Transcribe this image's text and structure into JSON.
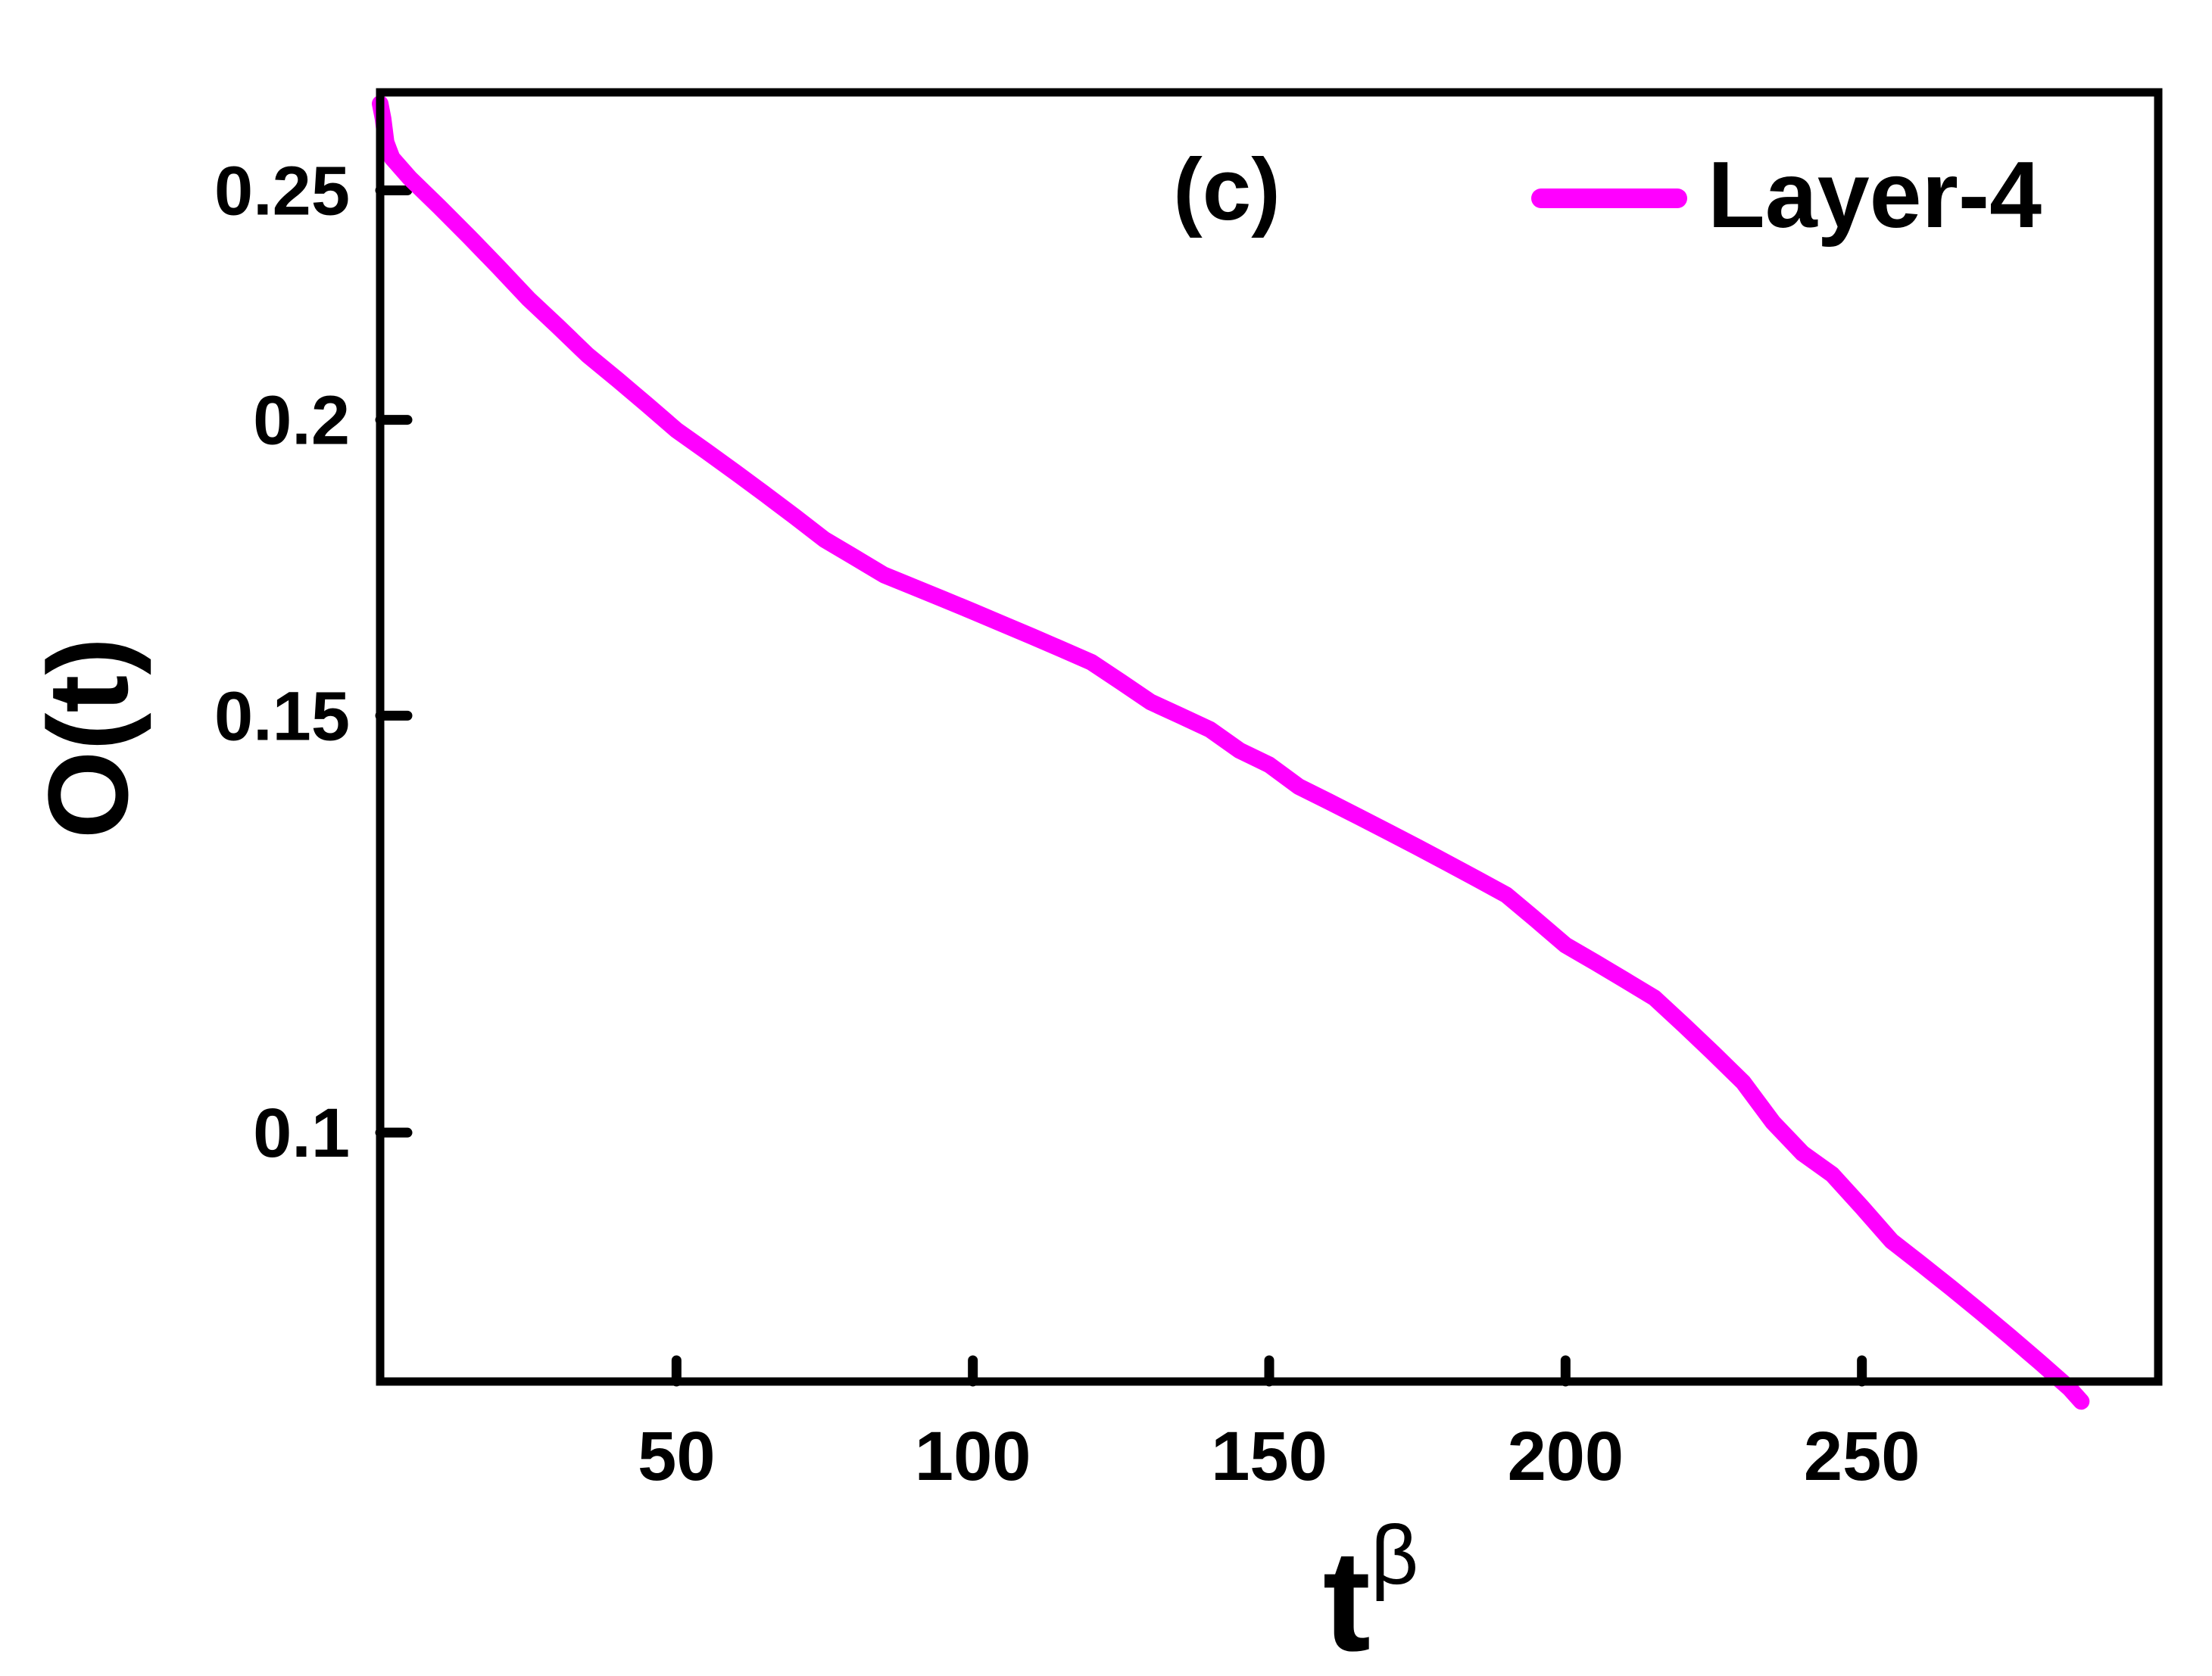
{
  "chart_data": {
    "type": "line",
    "title": "",
    "annotation": "(c)",
    "xlabel": "t",
    "xlabel_superscript": "β",
    "ylabel": "O(t)",
    "xscale": "linear",
    "yscale": "log",
    "xlim": [
      0,
      300
    ],
    "ylim": [
      0.0785,
      0.275
    ],
    "x_ticks": [
      50,
      100,
      150,
      200,
      250
    ],
    "x_tick_labels": [
      "50",
      "100",
      "150",
      "200",
      "250"
    ],
    "y_ticks": [
      0.1,
      0.15,
      0.2,
      0.25
    ],
    "y_tick_labels": [
      "0.1",
      "0.15",
      "0.2",
      "0.25"
    ],
    "grid": false,
    "legend_position": "top-right",
    "series": [
      {
        "name": "Layer-4",
        "color": "#ff00ff",
        "x": [
          0,
          0.5,
          1,
          1.5,
          2,
          5,
          10,
          15,
          20,
          25,
          30,
          35,
          40,
          45,
          50,
          55,
          60,
          65,
          70,
          75,
          80,
          85,
          90,
          95,
          100,
          105,
          110,
          115,
          120,
          125,
          130,
          135,
          140,
          145,
          150,
          155,
          160,
          165,
          170,
          175,
          180,
          185,
          190,
          195,
          200,
          205,
          210,
          215,
          220,
          225,
          230,
          235,
          240,
          245,
          250,
          255,
          260,
          265,
          270,
          275,
          280,
          285,
          287
        ],
        "y": [
          0.272,
          0.268,
          0.262,
          0.26,
          0.258,
          0.253,
          0.246,
          0.239,
          0.232,
          0.225,
          0.219,
          0.213,
          0.208,
          0.203,
          0.198,
          0.194,
          0.19,
          0.186,
          0.182,
          0.178,
          0.175,
          0.172,
          0.17,
          0.168,
          0.166,
          0.164,
          0.162,
          0.16,
          0.158,
          0.155,
          0.152,
          0.15,
          0.148,
          0.145,
          0.143,
          0.14,
          0.138,
          0.136,
          0.134,
          0.132,
          0.13,
          0.128,
          0.126,
          0.123,
          0.12,
          0.118,
          0.116,
          0.114,
          0.111,
          0.108,
          0.105,
          0.101,
          0.098,
          0.096,
          0.093,
          0.09,
          0.088,
          0.086,
          0.084,
          0.082,
          0.08,
          0.078,
          0.077
        ]
      }
    ]
  }
}
